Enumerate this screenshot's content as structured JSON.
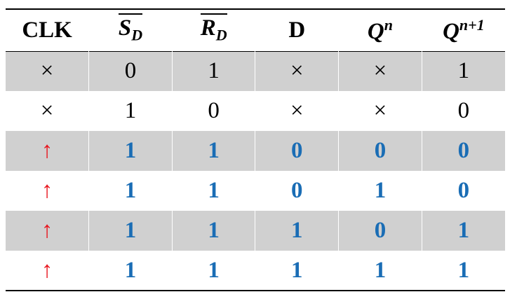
{
  "table": {
    "header": [
      {
        "text": "CLK"
      },
      {
        "base": "S",
        "sub": "D",
        "overline": true
      },
      {
        "base": "R",
        "sub": "D",
        "overline": true
      },
      {
        "text": "D"
      },
      {
        "base": "Q",
        "sup": "n"
      },
      {
        "base": "Q",
        "sup": "n+1"
      }
    ],
    "rows": [
      [
        "×",
        "0",
        "1",
        "×",
        "×",
        "1"
      ],
      [
        "×",
        "1",
        "0",
        "×",
        "×",
        "0"
      ],
      [
        "↑",
        "1",
        "1",
        "0",
        "0",
        "0"
      ],
      [
        "↑",
        "1",
        "1",
        "0",
        "1",
        "0"
      ],
      [
        "↑",
        "1",
        "1",
        "1",
        "0",
        "1"
      ],
      [
        "↑",
        "1",
        "1",
        "1",
        "1",
        "1"
      ]
    ]
  }
}
